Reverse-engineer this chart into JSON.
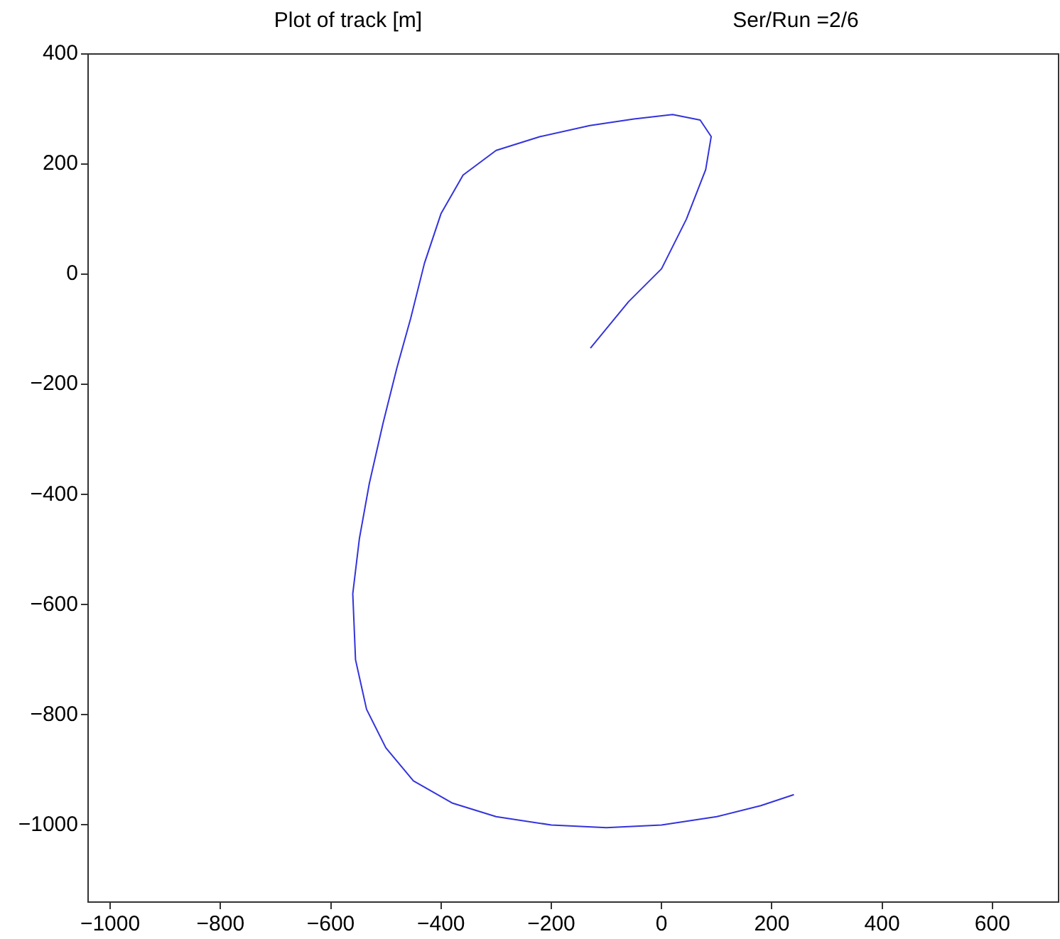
{
  "chart_data": {
    "type": "line",
    "title": "Plot of track [m]",
    "subtitle": "Ser/Run =2/6",
    "series": [
      {
        "color": "#3333dd",
        "x": [
          -129,
          -60,
          0,
          45,
          80,
          90,
          70,
          20,
          -50,
          -130,
          -220,
          -300,
          -360,
          -400,
          -430,
          -455,
          -480,
          -505,
          -530,
          -548,
          -560,
          -555,
          -535,
          -500,
          -450,
          -380,
          -300,
          -200,
          -100,
          0,
          100,
          180,
          240
        ],
        "values": [
          -134,
          -50,
          10,
          100,
          190,
          250,
          280,
          290,
          282,
          270,
          250,
          225,
          180,
          110,
          20,
          -80,
          -170,
          -270,
          -380,
          -480,
          -580,
          -700,
          -790,
          -860,
          -920,
          -960,
          -985,
          -1000,
          -1005,
          -1000,
          -985,
          -965,
          -945
        ]
      }
    ],
    "xlim": [
      -1040,
      720
    ],
    "xticks": [
      -1000,
      -800,
      -600,
      -400,
      -200,
      0,
      200,
      400,
      600
    ],
    "ylim": [
      -1140,
      400
    ],
    "yticks": [
      -1000,
      -800,
      -600,
      -400,
      -200,
      0,
      200,
      400
    ],
    "marker": "none",
    "line_style": "solid"
  }
}
